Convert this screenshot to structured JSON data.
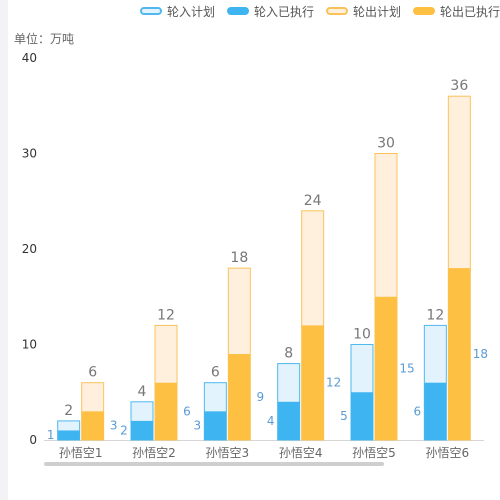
{
  "unit_label": "单位：万吨",
  "chart_data": {
    "type": "bar",
    "title": "",
    "xlabel": "",
    "ylabel": "单位：万吨",
    "categories": [
      "孙悟空1",
      "孙悟空2",
      "孙悟空3",
      "孙悟空4",
      "孙悟空5",
      "孙悟空6"
    ],
    "ylim": [
      0,
      40
    ],
    "yticks": [
      0,
      10,
      20,
      30,
      40
    ],
    "legend_position": "top-right",
    "grid": false,
    "series": [
      {
        "name": "轮入计划",
        "values": [
          2,
          4,
          6,
          8,
          10,
          12
        ],
        "color": "#e2f3fd",
        "border": "#4fb8ef"
      },
      {
        "name": "轮入已执行",
        "values": [
          1,
          2,
          3,
          4,
          5,
          6
        ],
        "color": "#3eb5f1"
      },
      {
        "name": "轮出计划",
        "values": [
          6,
          12,
          18,
          24,
          30,
          36
        ],
        "color": "#fff0de",
        "border": "#fbc25a"
      },
      {
        "name": "轮出已执行",
        "values": [
          3,
          6,
          9,
          12,
          15,
          18
        ],
        "color": "#fec042"
      }
    ]
  }
}
